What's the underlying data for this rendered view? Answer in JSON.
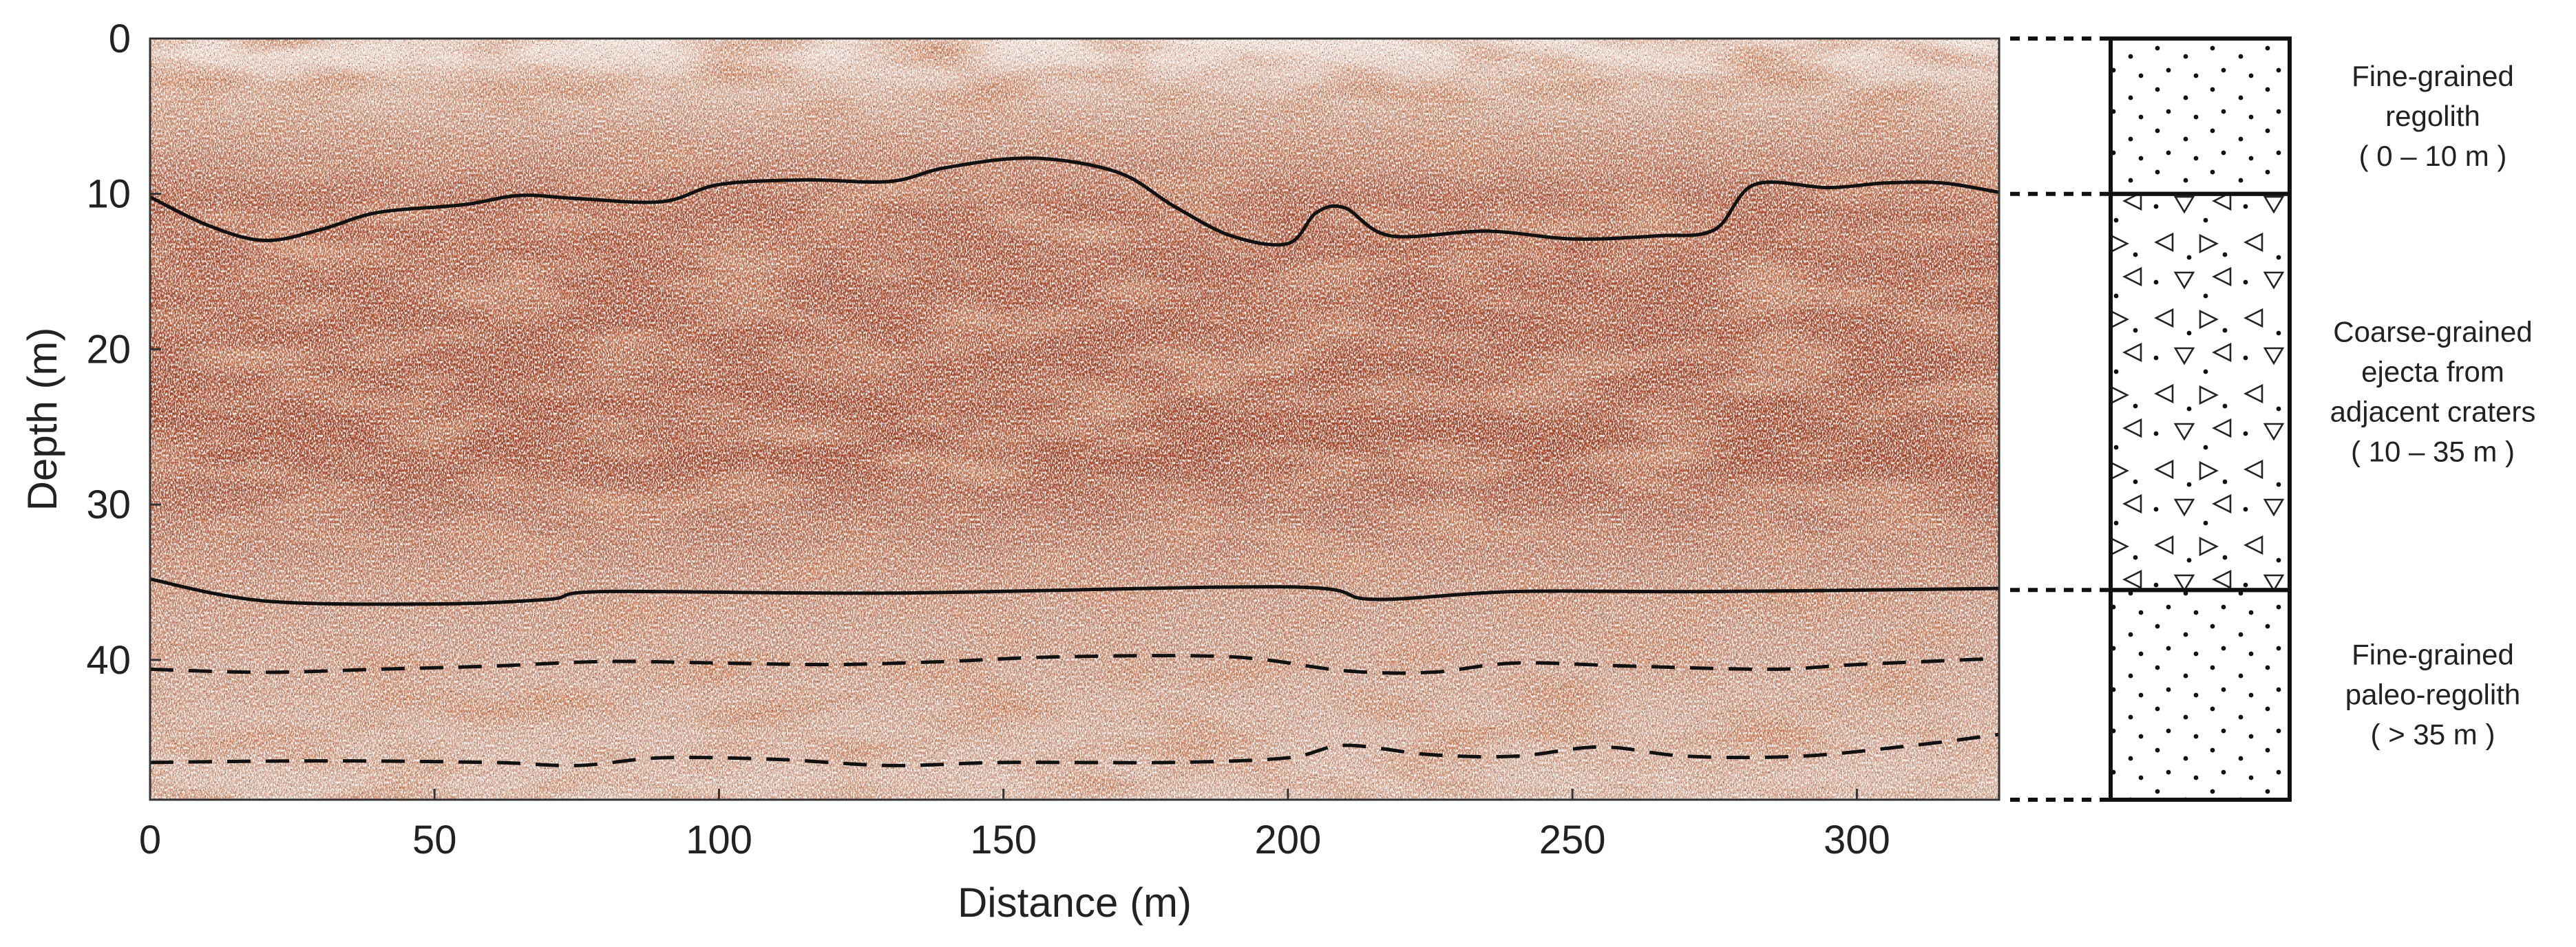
{
  "chart_data": {
    "type": "heatmap",
    "title": "",
    "xlabel": "Distance (m)",
    "ylabel": "Depth (m)",
    "xlim": [
      0,
      325
    ],
    "ylim": [
      0,
      49
    ],
    "x_ticks": [
      "0",
      "50",
      "100",
      "150",
      "200",
      "250",
      "300"
    ],
    "y_ticks": [
      "0",
      "10",
      "20",
      "30",
      "40"
    ],
    "grid": false,
    "colormap": [
      "#ffffff",
      "#a0411a",
      "#000000"
    ],
    "interfaces": [
      {
        "style": "solid",
        "points": [
          [
            0,
            10.2
          ],
          [
            10,
            12
          ],
          [
            20,
            13
          ],
          [
            30,
            12.3
          ],
          [
            40,
            11.2
          ],
          [
            55,
            10.7
          ],
          [
            65,
            10.1
          ],
          [
            75,
            10.3
          ],
          [
            90,
            10.5
          ],
          [
            100,
            9.4
          ],
          [
            115,
            9.1
          ],
          [
            130,
            9.2
          ],
          [
            140,
            8.3
          ],
          [
            155,
            7.7
          ],
          [
            170,
            8.6
          ],
          [
            180,
            10.8
          ],
          [
            190,
            12.7
          ],
          [
            200,
            13.2
          ],
          [
            205,
            11.2
          ],
          [
            210,
            10.9
          ],
          [
            218,
            12.7
          ],
          [
            235,
            12.4
          ],
          [
            250,
            12.9
          ],
          [
            265,
            12.7
          ],
          [
            275,
            12.3
          ],
          [
            282,
            9.4
          ],
          [
            295,
            9.6
          ],
          [
            305,
            9.3
          ],
          [
            315,
            9.3
          ],
          [
            325,
            9.9
          ]
        ]
      },
      {
        "style": "solid",
        "points": [
          [
            0,
            34.8
          ],
          [
            20,
            36.2
          ],
          [
            50,
            36.4
          ],
          [
            70,
            36.1
          ],
          [
            80,
            35.6
          ],
          [
            130,
            35.7
          ],
          [
            200,
            35.3
          ],
          [
            215,
            36.1
          ],
          [
            240,
            35.6
          ],
          [
            275,
            35.6
          ],
          [
            325,
            35.4
          ]
        ]
      },
      {
        "style": "dashed",
        "points": [
          [
            0,
            40.6
          ],
          [
            20,
            40.8
          ],
          [
            40,
            40.6
          ],
          [
            60,
            40.4
          ],
          [
            80,
            40.1
          ],
          [
            100,
            40.2
          ],
          [
            120,
            40.3
          ],
          [
            140,
            40.1
          ],
          [
            160,
            39.8
          ],
          [
            190,
            39.8
          ],
          [
            210,
            40.7
          ],
          [
            225,
            40.8
          ],
          [
            240,
            40.2
          ],
          [
            260,
            40.4
          ],
          [
            285,
            40.6
          ],
          [
            300,
            40.3
          ],
          [
            325,
            39.9
          ]
        ]
      },
      {
        "style": "dashed",
        "points": [
          [
            0,
            46.6
          ],
          [
            30,
            46.5
          ],
          [
            60,
            46.6
          ],
          [
            75,
            46.8
          ],
          [
            90,
            46.3
          ],
          [
            110,
            46.4
          ],
          [
            130,
            46.8
          ],
          [
            150,
            46.6
          ],
          [
            180,
            46.6
          ],
          [
            200,
            46.3
          ],
          [
            210,
            45.5
          ],
          [
            225,
            46.1
          ],
          [
            240,
            46.2
          ],
          [
            255,
            45.6
          ],
          [
            270,
            46.2
          ],
          [
            290,
            46.2
          ],
          [
            310,
            45.5
          ],
          [
            325,
            44.8
          ]
        ]
      }
    ],
    "units": [
      {
        "name_lines": [
          "Fine-grained",
          "regolith"
        ],
        "range_text": "( 0 – 10 m )",
        "top": 0,
        "bottom": 10,
        "pattern": "dots"
      },
      {
        "name_lines": [
          "Coarse-grained",
          "ejecta from",
          "adjacent craters"
        ],
        "range_text": "( 10 – 35 m )",
        "top": 10,
        "bottom": 35.5,
        "pattern": "triangles"
      },
      {
        "name_lines": [
          "Fine-grained",
          "paleo-regolith"
        ],
        "range_text": "( > 35 m )",
        "top": 35.5,
        "bottom": 49,
        "pattern": "dots"
      }
    ]
  }
}
